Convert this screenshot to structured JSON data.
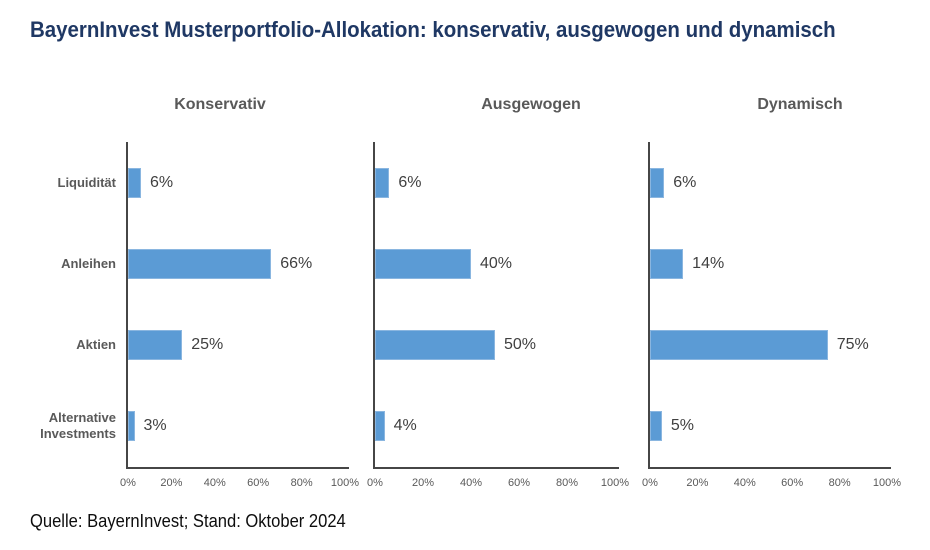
{
  "page": {
    "title": "BayernInvest Musterportfolio-Allokation: konservativ, ausgewogen und dynamisch",
    "source": "Quelle: BayernInvest; Stand: Oktober 2024"
  },
  "colors": {
    "bar_fill": "#5B9BD5",
    "title_navy": "#1F3864",
    "axis_gray": "#464646",
    "label_gray": "#595959"
  },
  "chart_data": [
    {
      "type": "bar",
      "orientation": "horizontal",
      "title": "Konservativ",
      "categories": [
        "Liquidität",
        "Anleihen",
        "Aktien",
        "Alternative Investments"
      ],
      "values": [
        6,
        66,
        25,
        3
      ],
      "data_labels": [
        "6%",
        "66%",
        "25%",
        "3%"
      ],
      "xticks": [
        "0%",
        "20%",
        "40%",
        "60%",
        "80%",
        "100%"
      ],
      "xlim": [
        0,
        100
      ],
      "grid": false,
      "show_category_labels": true
    },
    {
      "type": "bar",
      "orientation": "horizontal",
      "title": "Ausgewogen",
      "categories": [
        "Liquidität",
        "Anleihen",
        "Aktien",
        "Alternative Investments"
      ],
      "values": [
        6,
        40,
        50,
        4
      ],
      "data_labels": [
        "6%",
        "40%",
        "50%",
        "4%"
      ],
      "xticks": [
        "0%",
        "20%",
        "40%",
        "60%",
        "80%",
        "100%"
      ],
      "xlim": [
        0,
        100
      ],
      "grid": false,
      "show_category_labels": false
    },
    {
      "type": "bar",
      "orientation": "horizontal",
      "title": "Dynamisch",
      "categories": [
        "Liquidität",
        "Anleihen",
        "Aktien",
        "Alternative Investments"
      ],
      "values": [
        6,
        14,
        75,
        5
      ],
      "data_labels": [
        "6%",
        "14%",
        "75%",
        "5%"
      ],
      "xticks": [
        "0%",
        "20%",
        "40%",
        "60%",
        "80%",
        "100%"
      ],
      "xlim": [
        0,
        100
      ],
      "grid": false,
      "show_category_labels": false
    }
  ]
}
